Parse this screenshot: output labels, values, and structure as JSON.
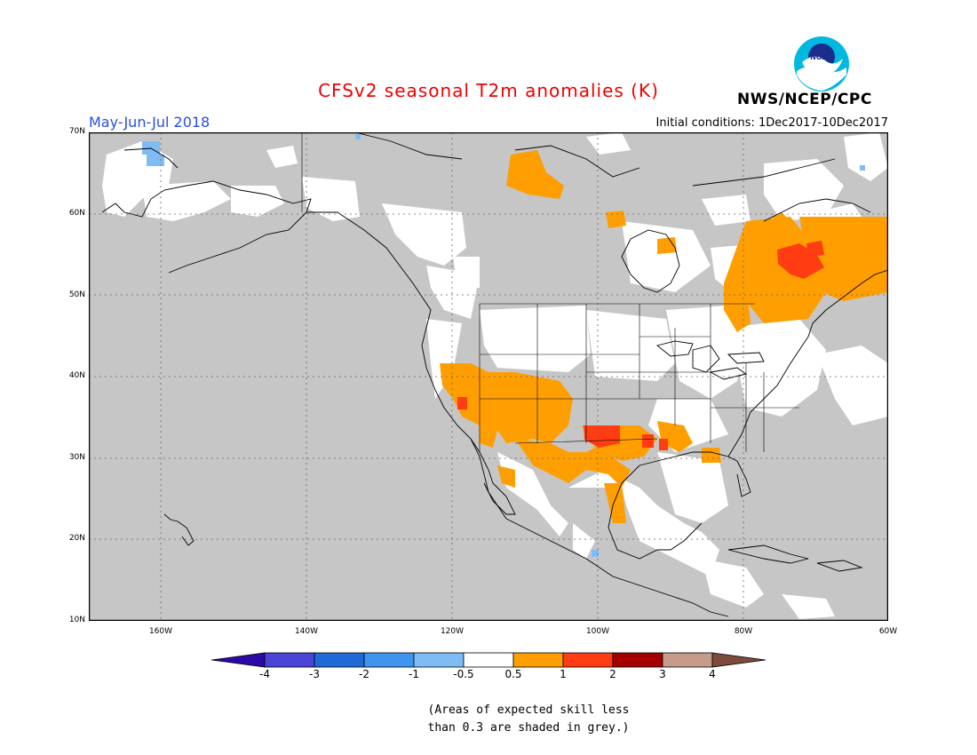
{
  "header": {
    "title": "CFSv2 seasonal T2m anomalies (K)",
    "season": "May-Jun-Jul 2018",
    "initial_conditions": "Initial conditions: 1Dec2017-10Dec2017",
    "agency": "NWS/NCEP/CPC",
    "logo_text": "NOAA"
  },
  "colors": {
    "title": "#ee0000",
    "season": "#2a4ee0",
    "grey_mask": "#c6c6c6",
    "neutral": "#ffffff",
    "warm1": "#ff9e00",
    "warm2": "#ff3c12",
    "warm3": "#a50000",
    "warm4": "#c59c8c",
    "warm5": "#7d4a3e",
    "cool1": "#80bcf4",
    "cool2": "#3f94f0",
    "cool3": "#1f6ad6",
    "cool4": "#4b44d6",
    "cool5": "#2b0aa5"
  },
  "map": {
    "projection": "lat-lon",
    "lon_range": [
      "170W",
      "60W"
    ],
    "lat_range": [
      "10N",
      "70N"
    ],
    "lat_labels": [
      "70N",
      "60N",
      "50N",
      "40N",
      "30N",
      "20N",
      "10N"
    ],
    "lon_labels": [
      "160W",
      "140W",
      "120W",
      "100W",
      "80W",
      "60W"
    ],
    "anomaly_regions": [
      {
        "name": "Hudson Bay / Northern Quebec",
        "category": "0.5 to 1"
      },
      {
        "name": "Eastern Quebec core",
        "category": "1 to 2"
      },
      {
        "name": "Nunavut / Northern Canada",
        "category": "0.5 to 1"
      },
      {
        "name": "Southwest US / Great Basin",
        "category": "0.5 to 1"
      },
      {
        "name": "Southern Nevada",
        "category": "1 to 2"
      },
      {
        "name": "Texas / Oklahoma",
        "category": "1 to 2"
      },
      {
        "name": "Gulf Coast / Louisiana",
        "category": "1 to 2"
      },
      {
        "name": "Northern Mexico / Baja",
        "category": "0.5 to 1"
      },
      {
        "name": "Western Alaska",
        "category": "-1 to -0.5"
      },
      {
        "name": "Central Mexico point",
        "category": "-1 to -0.5"
      }
    ]
  },
  "colorbar": {
    "labels": [
      "-4",
      "-3",
      "-2",
      "-1",
      "-0.5",
      "0.5",
      "1",
      "2",
      "3",
      "4"
    ]
  },
  "note": {
    "line1": "(Areas of expected skill less",
    "line2": "than 0.3 are shaded in grey.)"
  }
}
